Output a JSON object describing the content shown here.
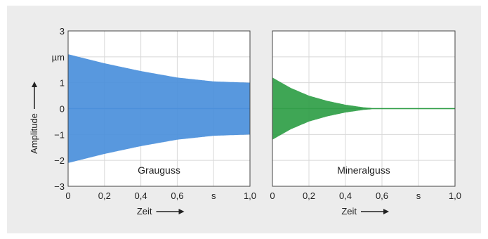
{
  "chart_data": [
    {
      "type": "area",
      "label": "Grauguss",
      "color": "#4a8fdb",
      "xlim": [
        0,
        1.0
      ],
      "ylim": [
        -3,
        3
      ],
      "x_ticks": [
        "0",
        "0,2",
        "0,4",
        "0,6",
        "s",
        "1,0"
      ],
      "y_ticks": [
        "3",
        "µm",
        "1",
        "0",
        "−1",
        "−2",
        "−3"
      ],
      "ylabel": "Amplitude",
      "xlabel": "Zeit",
      "envelope": {
        "x": [
          0,
          0.2,
          0.4,
          0.6,
          0.8,
          1.0
        ],
        "upper": [
          2.1,
          1.75,
          1.45,
          1.2,
          1.05,
          1.0
        ]
      },
      "grid": true
    },
    {
      "type": "area",
      "label": "Mineralguss",
      "color": "#2f9e47",
      "xlim": [
        0,
        1.0
      ],
      "ylim": [
        -3,
        3
      ],
      "x_ticks": [
        "0",
        "0,2",
        "0,4",
        "0,6",
        "s",
        "1,0"
      ],
      "xlabel": "Zeit",
      "envelope": {
        "x": [
          0,
          0.1,
          0.2,
          0.3,
          0.4,
          0.5,
          0.55,
          1.0
        ],
        "upper": [
          1.2,
          0.8,
          0.5,
          0.3,
          0.15,
          0.05,
          0.02,
          0.02
        ]
      },
      "grid": true
    }
  ]
}
